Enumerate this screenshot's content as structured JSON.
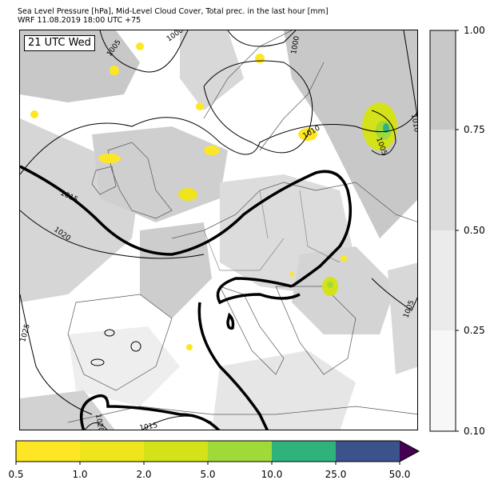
{
  "header": {
    "title_line1": "Sea Level Pressure [hPa], Mid-Level Cloud Cover, Total prec. in the last hour [mm]",
    "title_line2": "WRF 11.08.2019 18:00 UTC +75"
  },
  "map": {
    "time_label": "21 UTC Wed",
    "isobar_labels": [
      "1005",
      "1000",
      "1000",
      "1010",
      "1010",
      "1005",
      "1015",
      "1020",
      "1025",
      "1005",
      "1015",
      "1020"
    ]
  },
  "cloud_colorbar": {
    "ticks": [
      "1.00",
      "0.75",
      "0.50",
      "0.25",
      "0.10"
    ],
    "colors": [
      "#c8c8c8",
      "#dcdcdc",
      "#ebebeb",
      "#f7f7f7"
    ]
  },
  "precip_colorbar": {
    "ticks": [
      "0.5",
      "1.0",
      "2.0",
      "5.0",
      "10.0",
      "25.0",
      "50.0"
    ],
    "colors": [
      "#fde725",
      "#eee51c",
      "#d4e21a",
      "#a0da39",
      "#2eb37c",
      "#3b528b",
      "#440154"
    ]
  },
  "colors": {
    "land_outline": "#555555",
    "isobar": "#000000"
  }
}
